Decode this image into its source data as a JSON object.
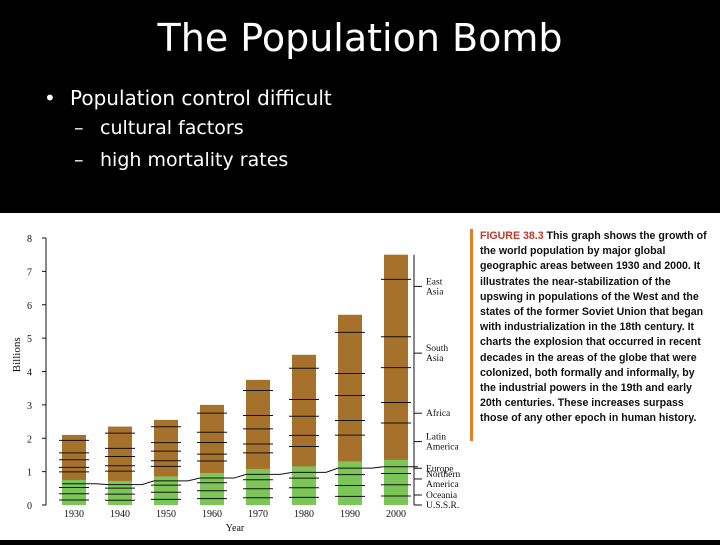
{
  "slide": {
    "title": "The Population Bomb",
    "bullet": "Population control difficult",
    "subbullets": [
      "cultural factors",
      "high mortality rates"
    ],
    "bullet_glyph": "•",
    "dash_glyph": "–"
  },
  "figure": {
    "caption_label": "FIGURE 38.3",
    "caption_text": "This graph shows the growth of the world population by major global geographic areas between 1930 and 2000. It illustrates the near-stabilization of the upswing in populations of the West and the states of the former Soviet Union that began with industrialization in the 18th century. It charts the explosion that occurred in recent decades in the areas of the globe that were colonized, both formally and informally, by the industrial powers in the 19th and early 20th centuries. These increases surpass those of any other epoch in human history."
  },
  "chart_data": {
    "type": "bar",
    "stacked": true,
    "title": "",
    "xlabel": "Year",
    "ylabel": "Billions",
    "ylim": [
      0,
      8
    ],
    "yticks": [
      "0",
      "1",
      "2",
      "3",
      "4",
      "5",
      "6",
      "7",
      "8"
    ],
    "categories": [
      "1930",
      "1940",
      "1950",
      "1960",
      "1970",
      "1980",
      "1990",
      "2000"
    ],
    "totals": [
      2.1,
      2.35,
      2.55,
      3.0,
      3.75,
      4.5,
      5.7,
      7.5
    ],
    "green_top": [
      0.75,
      0.72,
      0.85,
      0.95,
      1.08,
      1.15,
      1.3,
      1.35
    ],
    "colors": {
      "lower": "#7cc557",
      "upper": "#a6722b",
      "line": "#111111"
    },
    "region_labels": [
      {
        "name": "East Asia",
        "lines": [
          "East",
          "Asia"
        ],
        "y": 6.55
      },
      {
        "name": "South Asia",
        "lines": [
          "South",
          "Asia"
        ],
        "y": 4.55
      },
      {
        "name": "Africa",
        "lines": [
          "Africa"
        ],
        "y": 2.75
      },
      {
        "name": "Latin America",
        "lines": [
          "Latin",
          "America"
        ],
        "y": 1.9
      },
      {
        "name": "Europe",
        "lines": [
          "Europe"
        ],
        "y": 1.1
      },
      {
        "name": "Northern America",
        "lines": [
          "Northern",
          "America"
        ],
        "y": 0.78
      },
      {
        "name": "Oceania",
        "lines": [
          "Oceania"
        ],
        "y": 0.3
      },
      {
        "name": "U.S.S.R.",
        "lines": [
          "U.S.S.R."
        ],
        "y": 0.0
      }
    ]
  }
}
